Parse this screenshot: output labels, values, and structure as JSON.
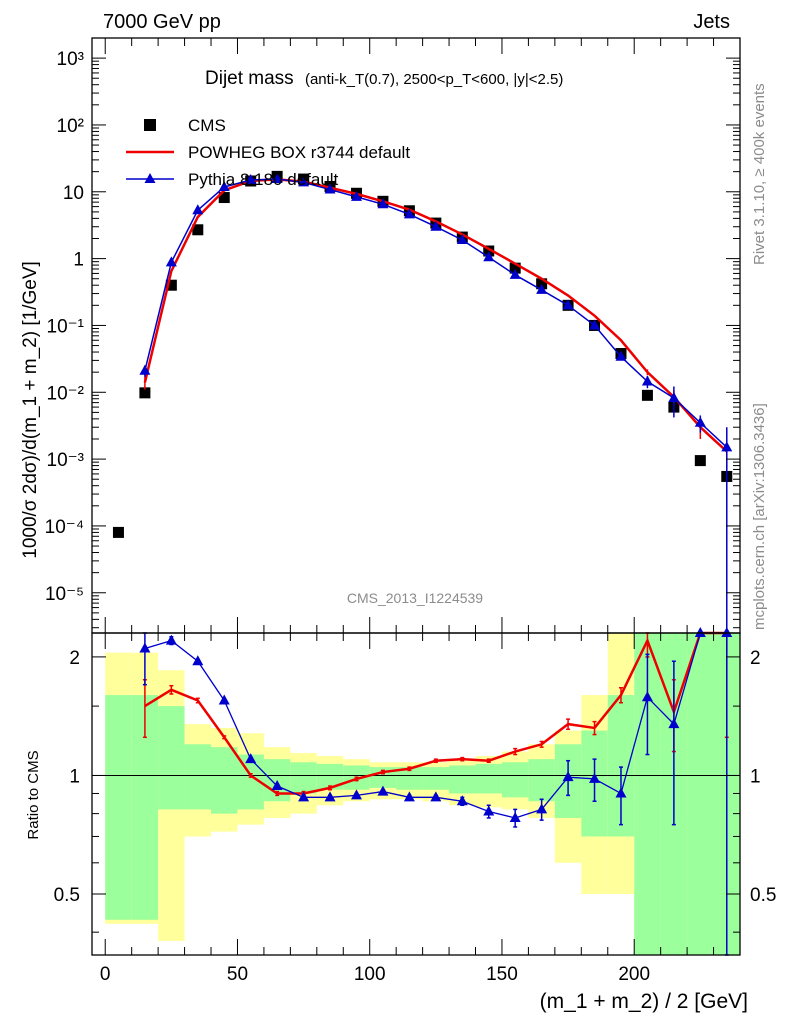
{
  "header": {
    "left": "7000 GeV pp",
    "right": "Jets"
  },
  "side_labels": {
    "rivet": "Rivet 3.1.10, ≥ 400k events",
    "source": "mcplots.cern.ch [arXiv:1306.3436]"
  },
  "chart_data": {
    "type": "line",
    "title": "Dijet mass",
    "subtitle": "(anti-k_T(0.7), 2500<p_T<600, |y|<2.5)",
    "watermark": "CMS_2013_I1224539",
    "xlabel": "(m_1 + m_2) / 2 [GeV]",
    "ylabel": "1000/σ 2dσ)/d(m_1 + m_2) [1/GeV]",
    "ratio_ylabel": "Ratio to CMS",
    "xlim": [
      -5,
      240
    ],
    "ylim": [
      2.5e-06,
      2000
    ],
    "yscale": "log",
    "ratio_ylim": [
      0.35,
      2.3
    ],
    "ratio_yscale": "log",
    "x_ticks": [
      "0",
      "50",
      "100",
      "150",
      "200"
    ],
    "y_ticks": [
      "10⁻⁵",
      "10⁻⁴",
      "10⁻³",
      "10⁻²",
      "10⁻¹",
      "1",
      "10",
      "10²",
      "10³"
    ],
    "ratio_ticks": [
      "0.5",
      "1",
      "2"
    ],
    "legend_position": "top-left",
    "series": [
      {
        "name": "CMS",
        "style": "marker-square",
        "color": "#000000",
        "x": [
          5,
          15,
          25,
          35,
          45,
          55,
          65,
          75,
          85,
          95,
          105,
          115,
          125,
          135,
          145,
          155,
          165,
          175,
          185,
          195,
          205,
          215,
          225,
          235
        ],
        "y": [
          8e-05,
          0.0098,
          0.4,
          2.7,
          8.2,
          14.5,
          17.0,
          15.5,
          12.0,
          9.5,
          7.2,
          5.2,
          3.4,
          2.1,
          1.3,
          0.72,
          0.42,
          0.2,
          0.1,
          0.038,
          0.009,
          0.006,
          0.00095,
          0.00055
        ]
      },
      {
        "name": "POWHEG BOX r3744 default",
        "style": "line",
        "color": "#ee0000",
        "x": [
          15,
          25,
          35,
          45,
          55,
          65,
          75,
          85,
          95,
          105,
          115,
          125,
          135,
          145,
          155,
          165,
          175,
          185,
          195,
          205,
          215,
          225,
          235
        ],
        "y": [
          0.014,
          0.65,
          4.2,
          10.5,
          14.5,
          15.3,
          14.2,
          11.5,
          9.3,
          7.2,
          5.4,
          3.6,
          2.3,
          1.4,
          0.84,
          0.5,
          0.28,
          0.14,
          0.06,
          0.02,
          0.0085,
          0.003,
          0.0013
        ],
        "err": [
          0.003,
          0.02,
          0.05,
          0.1,
          0.1,
          0.1,
          0.1,
          0.1,
          0.1,
          0.08,
          0.06,
          0.04,
          0.03,
          0.02,
          0.01,
          0.008,
          0.005,
          0.003,
          0.002,
          0.002,
          0.002,
          0.001,
          0.0006
        ]
      },
      {
        "name": "Pythia 8.180 default",
        "style": "line-triangle",
        "color": "#0000cc",
        "x": [
          15,
          25,
          35,
          45,
          55,
          65,
          75,
          85,
          95,
          105,
          115,
          125,
          135,
          145,
          155,
          165,
          175,
          185,
          195,
          205,
          215,
          225,
          235
        ],
        "y": [
          0.021,
          0.88,
          5.3,
          11.8,
          15.0,
          15.5,
          13.8,
          10.8,
          8.4,
          6.5,
          4.6,
          3.0,
          1.9,
          1.05,
          0.57,
          0.34,
          0.2,
          0.1,
          0.034,
          0.0145,
          0.0082,
          0.0035,
          0.0015
        ],
        "err": [
          0.004,
          0.02,
          0.05,
          0.1,
          0.1,
          0.1,
          0.1,
          0.1,
          0.1,
          0.08,
          0.06,
          0.04,
          0.03,
          0.02,
          0.01,
          0.008,
          0.005,
          0.003,
          0.003,
          0.003,
          0.004,
          0.001,
          0.0015
        ]
      }
    ],
    "ratio_series": [
      {
        "name": "POWHEG BOX r3744 default",
        "color": "#ee0000",
        "x": [
          15,
          25,
          35,
          45,
          55,
          65,
          75,
          85,
          95,
          105,
          115,
          125,
          135,
          145,
          155,
          165,
          175,
          185,
          195,
          205,
          215,
          225,
          235
        ],
        "y": [
          1.5,
          1.65,
          1.55,
          1.25,
          1.0,
          0.9,
          0.9,
          0.93,
          0.98,
          1.02,
          1.04,
          1.09,
          1.1,
          1.09,
          1.15,
          1.2,
          1.35,
          1.32,
          1.6,
          2.2,
          1.45,
          3.0,
          3.0
        ],
        "err_lo": [
          0.25,
          0.04,
          0.02,
          0.01,
          0.01,
          0.01,
          0.01,
          0.01,
          0.01,
          0.01,
          0.01,
          0.01,
          0.01,
          0.01,
          0.02,
          0.02,
          0.04,
          0.05,
          0.07,
          0.2,
          0.3,
          0.0,
          1.75
        ],
        "err_hi": [
          0.25,
          0.04,
          0.02,
          0.01,
          0.01,
          0.01,
          0.01,
          0.01,
          0.01,
          0.01,
          0.01,
          0.01,
          0.01,
          0.01,
          0.02,
          0.02,
          0.04,
          0.05,
          0.07,
          0.2,
          0.3,
          0.0,
          0.0
        ]
      },
      {
        "name": "Pythia 8.180 default",
        "color": "#0000cc",
        "x": [
          15,
          25,
          35,
          45,
          55,
          65,
          75,
          85,
          95,
          105,
          115,
          125,
          135,
          145,
          155,
          165,
          175,
          185,
          195,
          205,
          215,
          225,
          235
        ],
        "y": [
          2.1,
          2.2,
          1.95,
          1.55,
          1.1,
          0.94,
          0.88,
          0.88,
          0.89,
          0.91,
          0.88,
          0.88,
          0.86,
          0.81,
          0.78,
          0.82,
          0.99,
          0.98,
          0.9,
          1.58,
          1.35,
          2.3,
          2.3
        ],
        "err_lo": [
          0.4,
          0.05,
          0.02,
          0.01,
          0.01,
          0.01,
          0.01,
          0.01,
          0.01,
          0.01,
          0.01,
          0.01,
          0.02,
          0.03,
          0.04,
          0.05,
          0.1,
          0.12,
          0.15,
          0.45,
          0.6,
          0.0,
          2.0
        ],
        "err_hi": [
          0.4,
          0.05,
          0.02,
          0.01,
          0.01,
          0.01,
          0.01,
          0.01,
          0.01,
          0.01,
          0.01,
          0.01,
          0.02,
          0.03,
          0.04,
          0.05,
          0.1,
          0.12,
          0.15,
          0.45,
          0.6,
          0.0,
          0.0
        ]
      }
    ],
    "ratio_bands": {
      "x_edges": [
        0,
        10,
        20,
        30,
        40,
        50,
        60,
        70,
        80,
        90,
        100,
        110,
        120,
        130,
        140,
        150,
        160,
        170,
        180,
        190,
        200,
        210,
        220,
        230,
        240
      ],
      "outer_lo": [
        0.42,
        0.42,
        0.38,
        0.7,
        0.72,
        0.75,
        0.78,
        0.8,
        0.84,
        0.86,
        0.87,
        0.87,
        0.86,
        0.84,
        0.83,
        0.82,
        0.78,
        0.6,
        0.5,
        0.5,
        0.35,
        0.35,
        0.35,
        0.35
      ],
      "outer_hi": [
        2.05,
        2.05,
        1.85,
        1.35,
        1.32,
        1.28,
        1.18,
        1.14,
        1.12,
        1.1,
        1.08,
        1.08,
        1.08,
        1.09,
        1.12,
        1.15,
        1.2,
        1.3,
        1.6,
        2.3,
        2.3,
        2.3,
        2.3,
        2.3
      ],
      "inner_lo": [
        0.43,
        0.43,
        0.82,
        0.82,
        0.8,
        0.82,
        0.86,
        0.9,
        0.92,
        0.92,
        0.93,
        0.92,
        0.92,
        0.9,
        0.9,
        0.88,
        0.86,
        0.78,
        0.7,
        0.7,
        0.35,
        0.35,
        0.35,
        0.35
      ],
      "inner_hi": [
        1.6,
        1.6,
        1.5,
        1.2,
        1.18,
        1.13,
        1.1,
        1.08,
        1.07,
        1.06,
        1.05,
        1.05,
        1.05,
        1.06,
        1.07,
        1.08,
        1.1,
        1.2,
        1.3,
        1.6,
        2.3,
        2.3,
        2.3,
        2.3
      ],
      "outer_color": "#ffff9b",
      "inner_color": "#9bff9b"
    }
  }
}
